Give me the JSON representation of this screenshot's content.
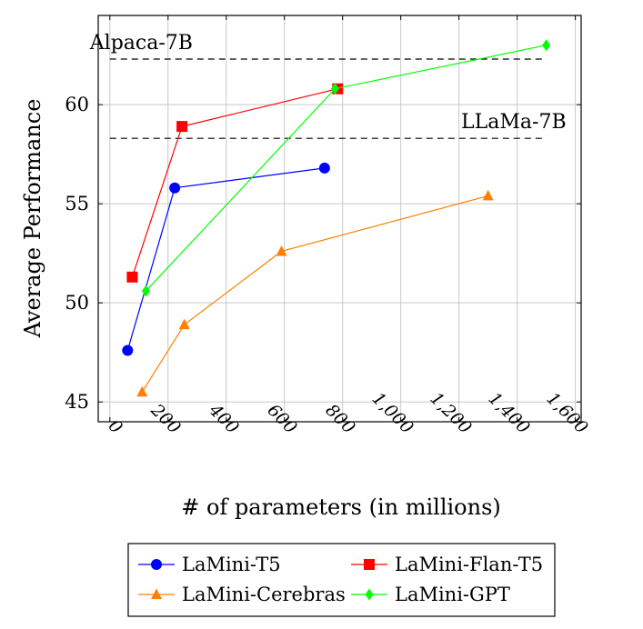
{
  "chart_data": {
    "type": "line",
    "xlabel": "# of parameters (in millions)",
    "ylabel": "Average Performance",
    "xlim": [
      -40,
      1620
    ],
    "ylim": [
      44,
      64.5
    ],
    "grid": true,
    "x_ticks": [
      0,
      200,
      400,
      600,
      800,
      1000,
      1200,
      1400,
      1600
    ],
    "x_tick_labels": [
      "0",
      "200",
      "400",
      "600",
      "800",
      "1,000",
      "1,200",
      "1,400",
      "1,600"
    ],
    "y_ticks": [
      45,
      50,
      55,
      60
    ],
    "y_tick_labels": [
      "45",
      "50",
      "55",
      "60"
    ],
    "reference_lines": [
      {
        "label": "Alpaca-7B",
        "y": 62.3,
        "x_range": [
          0,
          1500
        ]
      },
      {
        "label": "LLaMa-7B",
        "y": 58.3,
        "x_range": [
          0,
          1500
        ]
      }
    ],
    "series": [
      {
        "name": "LaMini-T5",
        "color": "#0000ff",
        "marker": "circle",
        "x": [
          61,
          223,
          738
        ],
        "y": [
          47.6,
          55.8,
          56.8
        ]
      },
      {
        "name": "LaMini-Flan-T5",
        "color": "#ff0000",
        "marker": "square",
        "x": [
          77,
          248,
          783
        ],
        "y": [
          51.3,
          58.9,
          60.8
        ]
      },
      {
        "name": "LaMini-Cerebras",
        "color": "#ff8000",
        "marker": "triangle",
        "x": [
          111,
          256,
          590,
          1300
        ],
        "y": [
          45.5,
          48.9,
          52.6,
          55.4
        ]
      },
      {
        "name": "LaMini-GPT",
        "color": "#00ff00",
        "marker": "diamond",
        "x": [
          124,
          774,
          1500
        ],
        "y": [
          50.6,
          60.8,
          63.0
        ]
      }
    ],
    "legend": "bottom-center"
  }
}
